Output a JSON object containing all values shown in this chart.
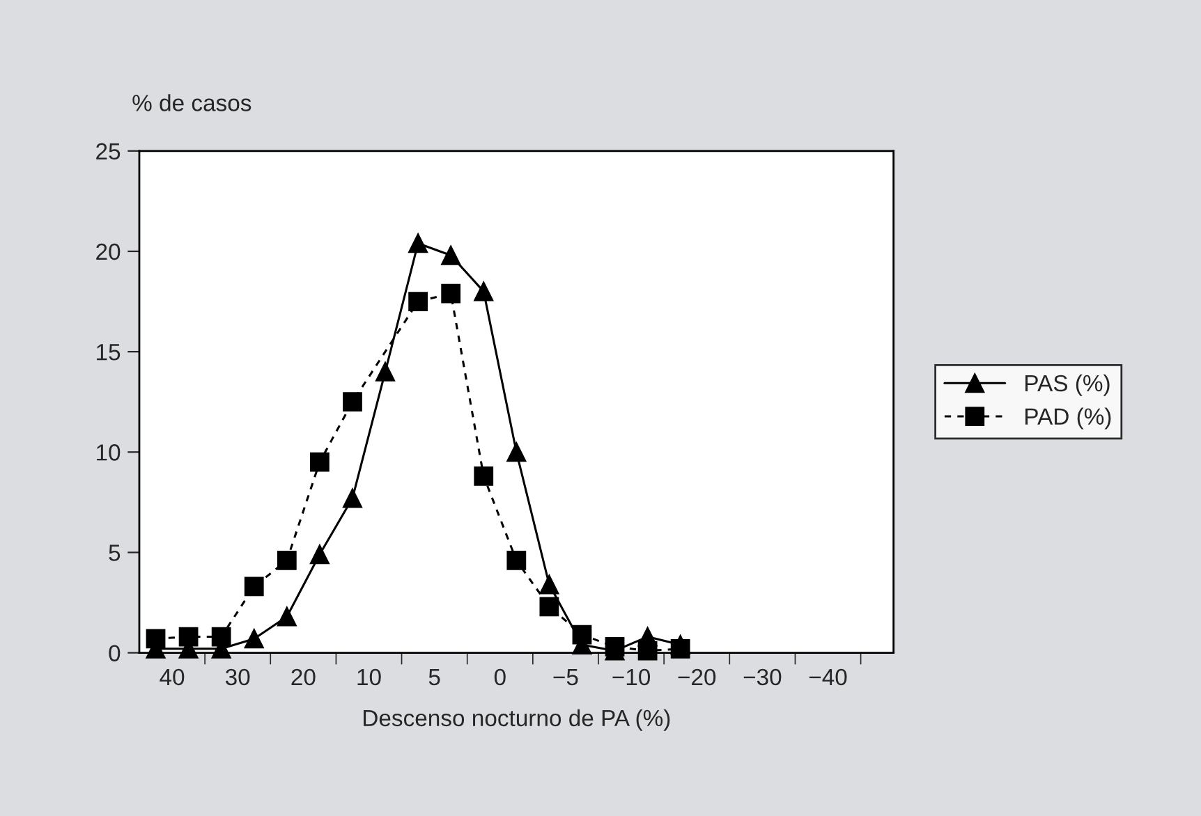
{
  "chart_data": {
    "type": "line",
    "xlabel": "Descenso nocturno de PA (%)",
    "ylabel": "% de casos",
    "categories": [
      null,
      "40",
      null,
      null,
      null,
      "30",
      null,
      null,
      null,
      "20",
      null,
      null,
      null,
      "10",
      null,
      null,
      null,
      "5",
      null,
      null,
      null,
      "0",
      null,
      null,
      null,
      "−5",
      null,
      null,
      null,
      "−10",
      null,
      null,
      null,
      "−20",
      null,
      null,
      null,
      "−30",
      null,
      null,
      null,
      "−40",
      null,
      null,
      null,
      null
    ],
    "series": [
      {
        "name": "PAS (%)",
        "color": "#000000",
        "marker": "triangle",
        "line_style": "solid",
        "values": [
          0.2,
          null,
          0.2,
          null,
          0.2,
          null,
          0.7,
          null,
          1.8,
          null,
          4.9,
          null,
          7.7,
          null,
          14,
          null,
          20.4,
          null,
          19.8,
          null,
          18,
          null,
          10,
          null,
          3.4,
          null,
          0.4,
          null,
          0.1,
          null,
          0.8,
          null,
          0.4,
          null,
          null,
          null,
          null,
          null,
          null,
          null,
          null,
          null,
          null,
          null,
          null,
          null
        ]
      },
      {
        "name": "PAD (%)",
        "color": "#000000",
        "marker": "square",
        "line_style": "dashed",
        "values": [
          0.7,
          null,
          0.8,
          null,
          0.8,
          null,
          3.3,
          null,
          4.6,
          null,
          9.5,
          null,
          12.5,
          null,
          null,
          null,
          17.5,
          null,
          17.9,
          null,
          8.8,
          null,
          4.6,
          null,
          2.3,
          null,
          0.9,
          null,
          0.3,
          null,
          0.1,
          null,
          0.2,
          null,
          null,
          null,
          null,
          null,
          null,
          null,
          null,
          null,
          null,
          null,
          null,
          null
        ]
      }
    ],
    "ylim": [
      0,
      25
    ],
    "yticks": [
      0,
      5,
      10,
      15,
      20,
      25
    ],
    "grid": false,
    "legend": "right"
  }
}
